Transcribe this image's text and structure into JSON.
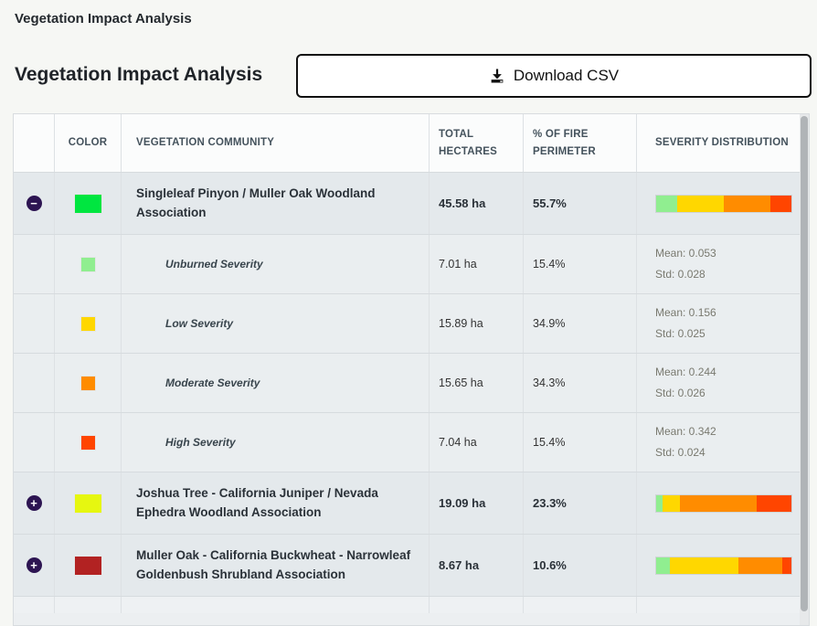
{
  "header": {
    "panel_title": "Vegetation Impact Analysis"
  },
  "section": {
    "title": "Vegetation Impact Analysis",
    "download_label": "Download CSV"
  },
  "table": {
    "columns": [
      "",
      "COLOR",
      "VEGETATION COMMUNITY",
      "TOTAL HECTARES",
      "% OF FIRE PERIMETER",
      "SEVERITY DISTRIBUTION"
    ],
    "rows": [
      {
        "type": "group",
        "expand": "−",
        "expanded": true,
        "swatch": "#00e640",
        "name": "Singleleaf Pinyon / Muller Oak Woodland Association",
        "hectares": "45.58 ha",
        "percent": "55.7%",
        "bar": [
          {
            "color": "#90ee90",
            "pct": 15.4
          },
          {
            "color": "#ffd700",
            "pct": 34.9
          },
          {
            "color": "#ff8c00",
            "pct": 34.3
          },
          {
            "color": "#ff4500",
            "pct": 15.4
          }
        ]
      },
      {
        "type": "sub",
        "swatch": "#90ee90",
        "name": "Unburned Severity",
        "hectares": "7.01 ha",
        "percent": "15.4%",
        "mean": "Mean: 0.053",
        "std": "Std: 0.028"
      },
      {
        "type": "sub",
        "swatch": "#ffd700",
        "name": "Low Severity",
        "hectares": "15.89 ha",
        "percent": "34.9%",
        "mean": "Mean: 0.156",
        "std": "Std: 0.025"
      },
      {
        "type": "sub",
        "swatch": "#ff8c00",
        "name": "Moderate Severity",
        "hectares": "15.65 ha",
        "percent": "34.3%",
        "mean": "Mean: 0.244",
        "std": "Std: 0.026"
      },
      {
        "type": "sub",
        "swatch": "#ff4500",
        "name": "High Severity",
        "hectares": "7.04 ha",
        "percent": "15.4%",
        "mean": "Mean: 0.342",
        "std": "Std: 0.024"
      },
      {
        "type": "group",
        "expand": "+",
        "expanded": false,
        "swatch": "#e6f710",
        "name": "Joshua Tree - California Juniper / Nevada Ephedra Woodland Association",
        "hectares": "19.09 ha",
        "percent": "23.3%",
        "bar": [
          {
            "color": "#90ee90",
            "pct": 4.5
          },
          {
            "color": "#ffd700",
            "pct": 13
          },
          {
            "color": "#ff8c00",
            "pct": 57
          },
          {
            "color": "#ff4500",
            "pct": 25.5
          }
        ]
      },
      {
        "type": "group",
        "expand": "+",
        "expanded": false,
        "swatch": "#b22222",
        "name": "Muller Oak - California Buckwheat - Narrowleaf Goldenbush Shrubland Association",
        "hectares": "8.67 ha",
        "percent": "10.6%",
        "bar": [
          {
            "color": "#90ee90",
            "pct": 10
          },
          {
            "color": "#ffd700",
            "pct": 51
          },
          {
            "color": "#ff8c00",
            "pct": 32
          },
          {
            "color": "#ff4500",
            "pct": 7
          }
        ]
      },
      {
        "type": "empty"
      }
    ]
  },
  "icons": {
    "download": "download-icon",
    "collapse": "collapse-icon",
    "expand": "expand-icon"
  },
  "colors": {
    "severity_unburned": "#90ee90",
    "severity_low": "#ffd700",
    "severity_moderate": "#ff8c00",
    "severity_high": "#ff4500",
    "expand_button_bg": "#2d1552",
    "group_row_bg": "#e4e9ec",
    "sub_row_bg": "#eaeef0"
  }
}
